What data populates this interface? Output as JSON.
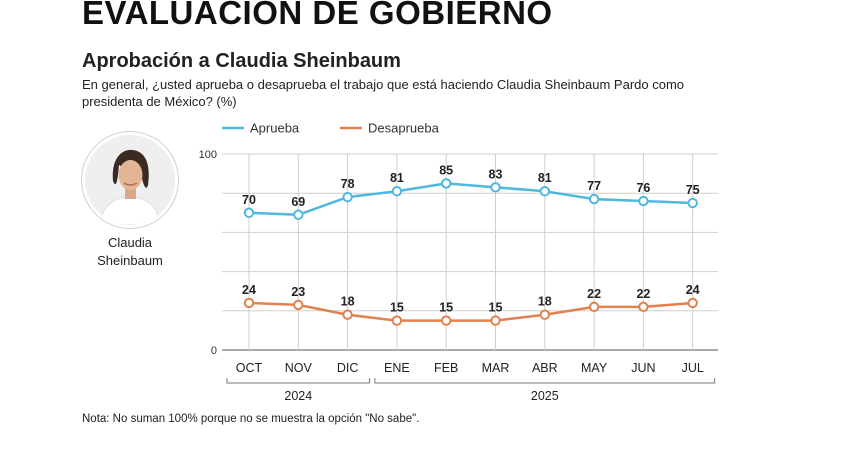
{
  "header": "EVALUACIÓN DE GOBIERNO",
  "person": {
    "name_line1": "Claudia",
    "name_line2": "Sheinbaum"
  },
  "note": "Nota: No suman 100% porque no se muestra la opción \"No sabe\".",
  "colors": {
    "aprueba": "#4fb8dd",
    "desaprueba": "#e2804f",
    "grid": "#cfcfcf"
  },
  "chart_data": {
    "type": "line",
    "title": "Aprobación a Claudia Sheinbaum",
    "subtitle": "En general, ¿usted aprueba o desaprueba el trabajo que está haciendo Claudia Sheinbaum Pardo como presidenta de México?  (%)",
    "categories": [
      "OCT",
      "NOV",
      "DIC",
      "ENE",
      "FEB",
      "MAR",
      "ABR",
      "MAY",
      "JUN",
      "JUL"
    ],
    "year_groups": [
      {
        "label": "2024",
        "start": 0,
        "end": 2
      },
      {
        "label": "2025",
        "start": 3,
        "end": 9
      }
    ],
    "series": [
      {
        "name": "Aprueba",
        "values": [
          70,
          69,
          78,
          81,
          85,
          83,
          81,
          77,
          76,
          75
        ]
      },
      {
        "name": "Desaprueba",
        "values": [
          24,
          23,
          18,
          15,
          15,
          15,
          18,
          22,
          22,
          24
        ]
      }
    ],
    "ylim": [
      0,
      100
    ],
    "y_ticks": [
      0,
      100
    ],
    "grid": true,
    "legend": "top-left"
  }
}
